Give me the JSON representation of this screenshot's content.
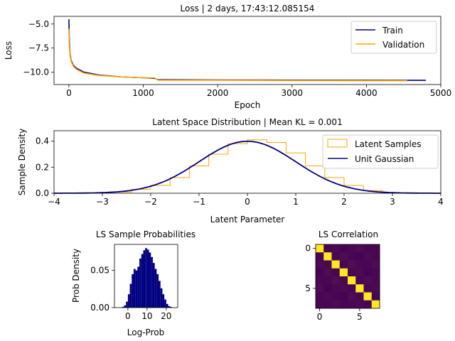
{
  "chart_data": [
    {
      "type": "line",
      "title": "Loss | 2 days, 17:43:12.085154",
      "xlabel": "Epoch",
      "ylabel": "Loss",
      "xlim": [
        -200,
        5000
      ],
      "ylim": [
        -11.3,
        -4.2
      ],
      "xticks": [
        0,
        1000,
        2000,
        3000,
        4000,
        5000
      ],
      "xtick_labels": [
        "0",
        "1000",
        "2000",
        "3000",
        "4000",
        "5000"
      ],
      "yticks": [
        -5.0,
        -7.5,
        -10.0
      ],
      "ytick_labels": [
        "−5.0",
        "−7.5",
        "−10.0"
      ],
      "legend": {
        "placement": "top-right",
        "entries": [
          "Train",
          "Validation"
        ]
      },
      "series": [
        {
          "name": "Train",
          "color": "#000080",
          "x": [
            0,
            5,
            15,
            30,
            60,
            100,
            200,
            400,
            700,
            1000,
            1150,
            1200,
            2000,
            3000,
            4000,
            4800
          ],
          "y": [
            -4.5,
            -6.4,
            -8.1,
            -8.8,
            -9.3,
            -9.6,
            -10.0,
            -10.3,
            -10.5,
            -10.6,
            -10.65,
            -10.8,
            -10.82,
            -10.84,
            -10.85,
            -10.86
          ]
        },
        {
          "name": "Validation",
          "color": "#ffa500",
          "x": [
            0,
            5,
            15,
            30,
            60,
            100,
            200,
            400,
            700,
            1000,
            1150,
            1200,
            2000,
            3000,
            4000,
            4550
          ],
          "y": [
            -5.5,
            -7.0,
            -8.3,
            -8.9,
            -9.4,
            -9.7,
            -10.1,
            -10.35,
            -10.5,
            -10.6,
            -10.6,
            -10.85,
            -10.85,
            -10.88,
            -10.9,
            -10.9
          ]
        }
      ]
    },
    {
      "type": "line",
      "title": "Latent Space Distribution | Mean KL = 0.001",
      "xlabel": "Latent Parameter",
      "ylabel": "Sample Density",
      "xlim": [
        -4,
        4
      ],
      "ylim": [
        0,
        0.48
      ],
      "xticks": [
        -4,
        -3,
        -2,
        -1,
        0,
        1,
        2,
        3,
        4
      ],
      "xtick_labels": [
        "−4",
        "−3",
        "−2",
        "−1",
        "0",
        "1",
        "2",
        "3",
        "4"
      ],
      "yticks": [
        0.0,
        0.2,
        0.4
      ],
      "ytick_labels": [
        "0.0",
        "0.2",
        "0.4"
      ],
      "legend": {
        "placement": "top-right",
        "entries": [
          "Latent Samples",
          "Unit Gaussian"
        ]
      },
      "series": [
        {
          "name": "Latent Samples",
          "kind": "step-histogram",
          "color": "#ffa500",
          "bin_edges": [
            -2.8,
            -2.4,
            -2.0,
            -1.6,
            -1.2,
            -0.8,
            -0.4,
            0.0,
            0.4,
            0.8,
            1.2,
            1.6,
            2.0,
            2.4,
            2.8
          ],
          "values": [
            0.01,
            0.03,
            0.06,
            0.12,
            0.21,
            0.3,
            0.38,
            0.41,
            0.39,
            0.31,
            0.21,
            0.12,
            0.06,
            0.02
          ]
        },
        {
          "name": "Unit Gaussian",
          "kind": "curve",
          "color": "#000080",
          "mean": 0,
          "std": 1
        }
      ]
    },
    {
      "type": "bar",
      "title": "LS Sample Probabilities",
      "xlabel": "Log-Prob",
      "ylabel": "Prob Density",
      "xlim": [
        -7,
        26
      ],
      "ylim": [
        0,
        0.085
      ],
      "xticks": [
        0,
        10,
        20
      ],
      "xtick_labels": [
        "0",
        "10",
        "20"
      ],
      "yticks": [
        0.0,
        0.05
      ],
      "ytick_labels": [
        "0.00",
        "0.05"
      ],
      "color": "#000080",
      "bin_edges": [
        -3,
        -2,
        -1,
        0,
        1,
        2,
        3,
        4,
        5,
        6,
        7,
        8,
        9,
        10,
        11,
        12,
        13,
        14,
        15,
        16,
        17,
        18,
        19,
        20,
        21,
        22,
        23
      ],
      "values": [
        0.001,
        0.003,
        0.008,
        0.018,
        0.032,
        0.045,
        0.052,
        0.05,
        0.055,
        0.066,
        0.072,
        0.077,
        0.08,
        0.078,
        0.074,
        0.068,
        0.06,
        0.052,
        0.045,
        0.036,
        0.026,
        0.018,
        0.011,
        0.005,
        0.002,
        0.001
      ]
    },
    {
      "type": "heatmap",
      "title": "LS Correlation",
      "xticks": [
        0,
        5
      ],
      "xtick_labels": [
        "0",
        "5"
      ],
      "yticks": [
        0,
        5
      ],
      "ytick_labels": [
        "0",
        "5"
      ],
      "size": 8,
      "colors": {
        "low": "#440154",
        "high": "#fde725"
      },
      "values": [
        [
          1.0,
          0.02,
          0.04,
          0.01,
          0.03,
          0.05,
          0.02,
          0.03
        ],
        [
          0.02,
          1.0,
          0.03,
          0.05,
          0.02,
          0.01,
          0.04,
          0.02
        ],
        [
          0.04,
          0.03,
          1.0,
          0.02,
          0.06,
          0.03,
          0.02,
          0.05
        ],
        [
          0.01,
          0.05,
          0.02,
          1.0,
          0.03,
          0.04,
          0.01,
          0.02
        ],
        [
          0.03,
          0.02,
          0.06,
          0.03,
          1.0,
          0.02,
          0.05,
          0.03
        ],
        [
          0.05,
          0.01,
          0.03,
          0.04,
          0.02,
          1.0,
          0.03,
          0.04
        ],
        [
          0.02,
          0.04,
          0.02,
          0.01,
          0.05,
          0.03,
          1.0,
          0.02
        ],
        [
          0.03,
          0.02,
          0.05,
          0.02,
          0.03,
          0.04,
          0.02,
          1.0
        ]
      ]
    }
  ]
}
